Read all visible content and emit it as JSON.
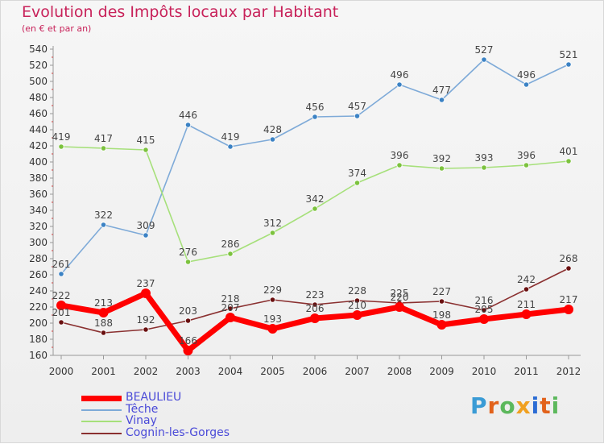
{
  "title": "Evolution des Impôts locaux par Habitant",
  "subtitle": "(en € et par an)",
  "logo": "Proxiti",
  "logo_colors": [
    "#3a9bd5",
    "#e2621b",
    "#5cb85c",
    "#f0a020",
    "#2b6cd4",
    "#e2621b",
    "#5cb85c"
  ],
  "chart_data": {
    "type": "line",
    "title": "Evolution des Impôts locaux par Habitant",
    "subtitle": "(en € et par an)",
    "xlabel": "",
    "ylabel": "",
    "x": [
      "2000",
      "2001",
      "2002",
      "2003",
      "2004",
      "2005",
      "2006",
      "2007",
      "2008",
      "2009",
      "2010",
      "2011",
      "2012"
    ],
    "ylim": [
      160,
      540
    ],
    "yticks": [
      160,
      180,
      200,
      220,
      240,
      260,
      280,
      300,
      320,
      340,
      360,
      380,
      400,
      420,
      440,
      460,
      480,
      500,
      520,
      540
    ],
    "grid": false,
    "legend_position": "bottom-left",
    "series": [
      {
        "name": "BEAULIEU",
        "color": "#ff0000",
        "marker_color": "#ff0000",
        "emphasis": true,
        "values": [
          222,
          213,
          237,
          166,
          207,
          193,
          206,
          210,
          220,
          198,
          205,
          211,
          217
        ]
      },
      {
        "name": "Têche",
        "color": "#7eaad8",
        "marker_color": "#3b82c4",
        "emphasis": false,
        "values": [
          261,
          322,
          309,
          446,
          419,
          428,
          456,
          457,
          496,
          477,
          527,
          496,
          521
        ]
      },
      {
        "name": "Vinay",
        "color": "#a6e07a",
        "marker_color": "#7cc23e",
        "emphasis": false,
        "values": [
          419,
          417,
          415,
          276,
          286,
          312,
          342,
          374,
          396,
          392,
          393,
          396,
          401
        ]
      },
      {
        "name": "Cognin-les-Gorges",
        "color": "#8a3030",
        "marker_color": "#6a1010",
        "emphasis": false,
        "values": [
          201,
          188,
          192,
          203,
          218,
          229,
          223,
          228,
          225,
          227,
          216,
          242,
          268
        ]
      }
    ]
  }
}
